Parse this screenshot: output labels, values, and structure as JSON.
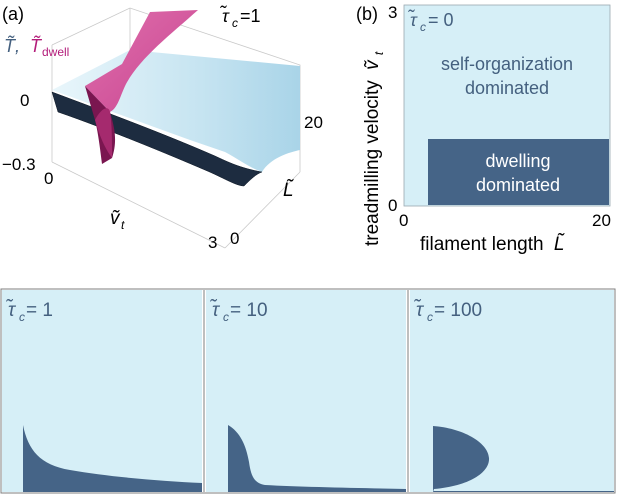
{
  "panel_a": {
    "label": "(a)",
    "title_tau": "τ̃",
    "title_sub": "c",
    "title_value": " =1",
    "zlabel_T": "T̃,",
    "zlabel_Td": "T̃",
    "zlabel_Td_sub": "dwell",
    "z_ticks": [
      "0",
      "−0.3"
    ],
    "x_ticks": [
      "0",
      "3"
    ],
    "x_label": "ṽ",
    "x_label_sub": "t",
    "y_ticks": [
      "0",
      "20"
    ],
    "y_label": "L̃",
    "colors": {
      "surface_T": "#c9e8f4",
      "surface_T_dark": "#1c2b3f",
      "surface_Td": "#d8549a",
      "surface_Td_dark": "#7c1450"
    }
  },
  "panel_b": {
    "label": "(b)",
    "tau_label": "τ̃",
    "tau_sub": "c",
    "tau_value": " = 0",
    "self_org_line1": "self-organization",
    "self_org_line2": "dominated",
    "dwell_line1": "dwelling",
    "dwell_line2": "dominated",
    "xlabel": "filament length",
    "xlabel_sym": "L̃",
    "ylabel": "treadmilling velocity",
    "ylabel_sym": "ṽ",
    "ylabel_sub": "t",
    "x_ticks": [
      "0",
      "20"
    ],
    "y_ticks": [
      "0",
      "3"
    ],
    "colors": {
      "self_org": "#d6eff7",
      "dwell": "#456487",
      "text_light": "#44607f",
      "text_dark": "#ffffff"
    }
  },
  "bottom_panels": [
    {
      "tau_label": "τ̃",
      "tau_sub": "c",
      "tau_value": " = 1"
    },
    {
      "tau_label": "τ̃",
      "tau_sub": "c",
      "tau_value": " = 10"
    },
    {
      "tau_label": "τ̃",
      "tau_sub": "c",
      "tau_value": " = 100"
    }
  ]
}
